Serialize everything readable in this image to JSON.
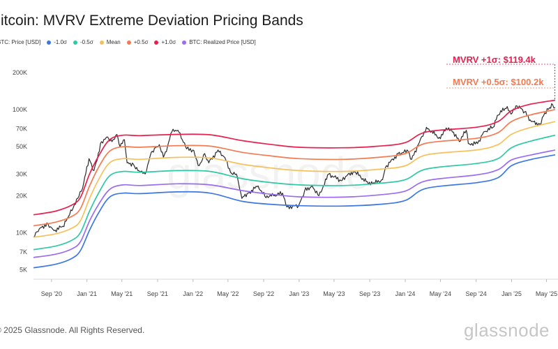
{
  "title": "Bitcoin: MVRV Extreme Deviation Pricing Bands",
  "footer": "© 2025 Glassnode. All Rights Reserved.",
  "brand": "glassnode",
  "watermark": "glassnode",
  "legend": [
    {
      "label": "BTC: Price [USD]",
      "color": "#2b2b2b"
    },
    {
      "label": "-1.0σ",
      "color": "#3d78e0"
    },
    {
      "label": "-0.5σ",
      "color": "#2fc9a5"
    },
    {
      "label": "Mean",
      "color": "#f6c15b"
    },
    {
      "label": "+0.5σ",
      "color": "#f47a50"
    },
    {
      "label": "+1.0σ",
      "color": "#e8204e"
    },
    {
      "label": "BTC: Realized Price [USD]",
      "color": "#9b6cf0"
    }
  ],
  "annotations": [
    {
      "text": "MVRV +1σ: $119.4k",
      "color": "#e8204e"
    },
    {
      "text": "MVRV +0.5σ: $100.2k",
      "color": "#f47a50"
    }
  ],
  "chart_data": {
    "type": "line",
    "y_scale": "log",
    "ylim": [
      4200,
      240000
    ],
    "xlim": [
      "2020-07-01",
      "2025-05-31"
    ],
    "grid": false,
    "legend_position": "top-left",
    "yticks": [
      {
        "value": 200000,
        "label": "200K"
      },
      {
        "value": 100000,
        "label": "100K"
      },
      {
        "value": 70000,
        "label": "70K"
      },
      {
        "value": 50000,
        "label": "50K"
      },
      {
        "value": 30000,
        "label": "30K"
      },
      {
        "value": 20000,
        "label": "20K"
      },
      {
        "value": 10000,
        "label": "10K"
      },
      {
        "value": 7000,
        "label": "7K"
      },
      {
        "value": 5000,
        "label": "5K"
      }
    ],
    "xticks": [
      {
        "date": "2020-09-01",
        "label": "Sep '20"
      },
      {
        "date": "2021-01-01",
        "label": "Jan '21"
      },
      {
        "date": "2021-05-01",
        "label": "May '21"
      },
      {
        "date": "2021-09-01",
        "label": "Sep '21"
      },
      {
        "date": "2022-01-01",
        "label": "Jan '22"
      },
      {
        "date": "2022-05-01",
        "label": "May '22"
      },
      {
        "date": "2022-09-01",
        "label": "Sep '22"
      },
      {
        "date": "2023-01-01",
        "label": "Jan '23"
      },
      {
        "date": "2023-05-01",
        "label": "May '23"
      },
      {
        "date": "2023-09-01",
        "label": "Sep '23"
      },
      {
        "date": "2024-01-01",
        "label": "Jan '24"
      },
      {
        "date": "2024-05-01",
        "label": "May '24"
      },
      {
        "date": "2024-09-01",
        "label": "Sep '24"
      },
      {
        "date": "2025-01-01",
        "label": "Jan '25"
      },
      {
        "date": "2025-05-01",
        "label": "May '25"
      }
    ],
    "series": [
      {
        "name": "BTC: Price [USD]",
        "color": "#2b2b2b",
        "points": [
          [
            "2020-07-01",
            9200
          ],
          [
            "2020-07-25",
            11000
          ],
          [
            "2020-08-20",
            11800
          ],
          [
            "2020-09-10",
            10400
          ],
          [
            "2020-10-10",
            11300
          ],
          [
            "2020-10-25",
            13000
          ],
          [
            "2020-11-15",
            16000
          ],
          [
            "2020-11-30",
            19000
          ],
          [
            "2020-12-17",
            23000
          ],
          [
            "2021-01-08",
            40000
          ],
          [
            "2021-01-25",
            32000
          ],
          [
            "2021-02-20",
            55000
          ],
          [
            "2021-03-13",
            60000
          ],
          [
            "2021-03-28",
            55000
          ],
          [
            "2021-04-14",
            63000
          ],
          [
            "2021-04-25",
            50000
          ],
          [
            "2021-05-10",
            57000
          ],
          [
            "2021-05-19",
            37000
          ],
          [
            "2021-06-10",
            36000
          ],
          [
            "2021-06-25",
            32000
          ],
          [
            "2021-07-20",
            30000
          ],
          [
            "2021-08-10",
            45000
          ],
          [
            "2021-08-25",
            49000
          ],
          [
            "2021-09-07",
            52000
          ],
          [
            "2021-09-21",
            41000
          ],
          [
            "2021-10-05",
            50000
          ],
          [
            "2021-10-20",
            66000
          ],
          [
            "2021-11-10",
            68000
          ],
          [
            "2021-11-25",
            57000
          ],
          [
            "2021-12-10",
            48000
          ],
          [
            "2021-12-31",
            47000
          ],
          [
            "2022-01-22",
            35000
          ],
          [
            "2022-02-10",
            44000
          ],
          [
            "2022-02-24",
            37000
          ],
          [
            "2022-03-28",
            47000
          ],
          [
            "2022-04-20",
            41000
          ],
          [
            "2022-05-10",
            31000
          ],
          [
            "2022-05-30",
            30000
          ],
          [
            "2022-06-18",
            19000
          ],
          [
            "2022-07-10",
            21000
          ],
          [
            "2022-08-13",
            24000
          ],
          [
            "2022-09-05",
            19800
          ],
          [
            "2022-10-05",
            20000
          ],
          [
            "2022-11-05",
            21000
          ],
          [
            "2022-11-20",
            16200
          ],
          [
            "2022-12-30",
            16500
          ],
          [
            "2023-01-20",
            22000
          ],
          [
            "2023-02-15",
            24000
          ],
          [
            "2023-03-10",
            20000
          ],
          [
            "2023-04-13",
            30000
          ],
          [
            "2023-05-25",
            26500
          ],
          [
            "2023-06-22",
            30500
          ],
          [
            "2023-07-14",
            31000
          ],
          [
            "2023-08-20",
            26000
          ],
          [
            "2023-09-11",
            25000
          ],
          [
            "2023-10-15",
            27000
          ],
          [
            "2023-10-25",
            34000
          ],
          [
            "2023-12-08",
            44000
          ],
          [
            "2024-01-11",
            46000
          ],
          [
            "2024-01-23",
            39500
          ],
          [
            "2024-02-15",
            52000
          ],
          [
            "2024-03-14",
            72000
          ],
          [
            "2024-05-01",
            58000
          ],
          [
            "2024-05-21",
            71000
          ],
          [
            "2024-06-07",
            70000
          ],
          [
            "2024-07-05",
            55000
          ],
          [
            "2024-07-29",
            68000
          ],
          [
            "2024-08-05",
            53000
          ],
          [
            "2024-09-06",
            53000
          ],
          [
            "2024-09-27",
            66000
          ],
          [
            "2024-10-29",
            72000
          ],
          [
            "2024-11-13",
            90000
          ],
          [
            "2024-12-17",
            106000
          ],
          [
            "2024-12-30",
            92000
          ],
          [
            "2025-01-20",
            107000
          ],
          [
            "2025-02-15",
            96000
          ],
          [
            "2025-03-10",
            80000
          ],
          [
            "2025-04-08",
            76000
          ],
          [
            "2025-04-25",
            94000
          ],
          [
            "2025-05-12",
            104000
          ],
          [
            "2025-05-22",
            110000
          ],
          [
            "2025-05-31",
            104000
          ]
        ]
      },
      {
        "name": "+1.0σ",
        "color": "#e8204e",
        "points": [
          [
            "2020-07-01",
            14000
          ],
          [
            "2020-09-15",
            15000
          ],
          [
            "2020-11-10",
            16800
          ],
          [
            "2020-12-10",
            19500
          ],
          [
            "2021-01-10",
            30000
          ],
          [
            "2021-02-10",
            42000
          ],
          [
            "2021-03-20",
            57000
          ],
          [
            "2021-05-05",
            62000
          ],
          [
            "2021-07-01",
            61500
          ],
          [
            "2021-11-10",
            63000
          ],
          [
            "2022-03-01",
            62500
          ],
          [
            "2022-06-20",
            56000
          ],
          [
            "2022-10-01",
            52000
          ],
          [
            "2023-01-01",
            49500
          ],
          [
            "2023-06-01",
            49000
          ],
          [
            "2023-10-01",
            50500
          ],
          [
            "2024-01-01",
            54000
          ],
          [
            "2024-03-15",
            66000
          ],
          [
            "2024-09-01",
            72000
          ],
          [
            "2024-11-15",
            80000
          ],
          [
            "2024-12-31",
            98000
          ],
          [
            "2025-03-01",
            110000
          ],
          [
            "2025-05-31",
            119400
          ]
        ]
      },
      {
        "name": "+0.5σ",
        "color": "#f47a50",
        "points": [
          [
            "2020-07-01",
            11400
          ],
          [
            "2020-09-15",
            12200
          ],
          [
            "2020-11-10",
            13600
          ],
          [
            "2020-12-10",
            15800
          ],
          [
            "2021-01-10",
            24000
          ],
          [
            "2021-02-10",
            34000
          ],
          [
            "2021-03-20",
            46000
          ],
          [
            "2021-05-05",
            50000
          ],
          [
            "2021-07-01",
            49500
          ],
          [
            "2021-11-10",
            51000
          ],
          [
            "2022-03-01",
            50500
          ],
          [
            "2022-06-20",
            45000
          ],
          [
            "2022-10-01",
            42000
          ],
          [
            "2023-01-01",
            40000
          ],
          [
            "2023-06-01",
            39500
          ],
          [
            "2023-10-01",
            41000
          ],
          [
            "2024-01-01",
            44000
          ],
          [
            "2024-03-15",
            53500
          ],
          [
            "2024-09-01",
            58500
          ],
          [
            "2024-11-15",
            65000
          ],
          [
            "2024-12-31",
            80000
          ],
          [
            "2025-03-01",
            90000
          ],
          [
            "2025-05-31",
            100200
          ]
        ]
      },
      {
        "name": "Mean",
        "color": "#f6c15b",
        "points": [
          [
            "2020-07-01",
            9200
          ],
          [
            "2020-09-15",
            9800
          ],
          [
            "2020-11-10",
            10900
          ],
          [
            "2020-12-10",
            12600
          ],
          [
            "2021-01-10",
            19000
          ],
          [
            "2021-02-10",
            27000
          ],
          [
            "2021-03-20",
            37000
          ],
          [
            "2021-05-05",
            40000
          ],
          [
            "2021-07-01",
            39500
          ],
          [
            "2021-11-10",
            41000
          ],
          [
            "2022-03-01",
            40500
          ],
          [
            "2022-06-20",
            36000
          ],
          [
            "2022-10-01",
            33500
          ],
          [
            "2023-01-01",
            32000
          ],
          [
            "2023-06-01",
            31500
          ],
          [
            "2023-10-01",
            32800
          ],
          [
            "2024-01-01",
            35000
          ],
          [
            "2024-03-15",
            43000
          ],
          [
            "2024-09-01",
            47000
          ],
          [
            "2024-11-15",
            52000
          ],
          [
            "2024-12-31",
            63000
          ],
          [
            "2025-03-01",
            71000
          ],
          [
            "2025-05-31",
            80000
          ]
        ]
      },
      {
        "name": "-0.5σ",
        "color": "#2fc9a5",
        "points": [
          [
            "2020-07-01",
            7300
          ],
          [
            "2020-09-15",
            7800
          ],
          [
            "2020-11-10",
            8700
          ],
          [
            "2020-12-10",
            10100
          ],
          [
            "2021-01-10",
            15000
          ],
          [
            "2021-02-10",
            21000
          ],
          [
            "2021-03-20",
            29000
          ],
          [
            "2021-05-05",
            31500
          ],
          [
            "2021-07-01",
            31000
          ],
          [
            "2021-11-10",
            32000
          ],
          [
            "2022-03-01",
            31500
          ],
          [
            "2022-06-20",
            27500
          ],
          [
            "2022-10-01",
            25500
          ],
          [
            "2023-01-01",
            24500
          ],
          [
            "2023-06-01",
            24200
          ],
          [
            "2023-10-01",
            25200
          ],
          [
            "2024-01-01",
            27000
          ],
          [
            "2024-03-15",
            33000
          ],
          [
            "2024-09-01",
            36500
          ],
          [
            "2024-11-15",
            40000
          ],
          [
            "2024-12-31",
            49000
          ],
          [
            "2025-03-01",
            55000
          ],
          [
            "2025-05-31",
            62000
          ]
        ]
      },
      {
        "name": "BTC: Realized Price [USD]",
        "color": "#9b6cf0",
        "points": [
          [
            "2020-07-01",
            6300
          ],
          [
            "2020-09-15",
            6700
          ],
          [
            "2020-11-10",
            7400
          ],
          [
            "2020-12-10",
            8500
          ],
          [
            "2021-01-10",
            12500
          ],
          [
            "2021-02-10",
            17000
          ],
          [
            "2021-03-20",
            22500
          ],
          [
            "2021-05-05",
            24500
          ],
          [
            "2021-07-01",
            24200
          ],
          [
            "2021-11-10",
            25000
          ],
          [
            "2022-03-01",
            24500
          ],
          [
            "2022-06-20",
            22000
          ],
          [
            "2022-10-01",
            20500
          ],
          [
            "2023-01-01",
            19600
          ],
          [
            "2023-06-01",
            19500
          ],
          [
            "2023-10-01",
            20300
          ],
          [
            "2024-01-01",
            21800
          ],
          [
            "2024-03-15",
            26500
          ],
          [
            "2024-09-01",
            29500
          ],
          [
            "2024-11-15",
            32500
          ],
          [
            "2024-12-31",
            39000
          ],
          [
            "2025-03-01",
            42500
          ],
          [
            "2025-05-31",
            47000
          ]
        ]
      },
      {
        "name": "-1.0σ",
        "color": "#3d78e0",
        "points": [
          [
            "2020-07-01",
            5200
          ],
          [
            "2020-09-15",
            5550
          ],
          [
            "2020-11-10",
            6200
          ],
          [
            "2020-12-10",
            7200
          ],
          [
            "2021-01-10",
            10500
          ],
          [
            "2021-02-10",
            14500
          ],
          [
            "2021-03-20",
            19500
          ],
          [
            "2021-05-05",
            21000
          ],
          [
            "2021-07-01",
            20800
          ],
          [
            "2021-11-10",
            21500
          ],
          [
            "2022-03-01",
            21000
          ],
          [
            "2022-06-20",
            18000
          ],
          [
            "2022-10-01",
            17000
          ],
          [
            "2023-01-01",
            16600
          ],
          [
            "2023-06-01",
            16500
          ],
          [
            "2023-10-01",
            17000
          ],
          [
            "2024-01-01",
            18300
          ],
          [
            "2024-03-15",
            23000
          ],
          [
            "2024-09-01",
            25500
          ],
          [
            "2024-11-15",
            28000
          ],
          [
            "2024-12-31",
            35000
          ],
          [
            "2025-03-01",
            39000
          ],
          [
            "2025-05-31",
            43000
          ]
        ]
      }
    ]
  }
}
